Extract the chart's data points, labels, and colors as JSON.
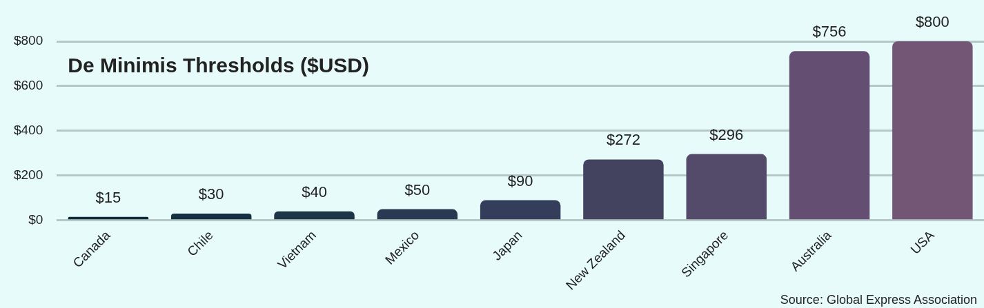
{
  "chart_data": {
    "type": "bar",
    "title": "De Minimis Thresholds ($USD)",
    "categories": [
      "Canada",
      "Chile",
      "Vietnam",
      "Mexico",
      "Japan",
      "New Zealand",
      "Singapore",
      "Australia",
      "USA"
    ],
    "values": [
      15,
      30,
      40,
      50,
      90,
      272,
      296,
      756,
      800
    ],
    "colors": [
      "#0c2a3a",
      "#142f40",
      "#1e3448",
      "#283a52",
      "#343d5a",
      "#434360",
      "#544a6a",
      "#644f72",
      "#735676"
    ],
    "ylim": [
      0,
      800
    ],
    "yticks": [
      {
        "value": 0,
        "label": "$0"
      },
      {
        "value": 200,
        "label": "$200"
      },
      {
        "value": 400,
        "label": "$400"
      },
      {
        "value": 600,
        "label": "$600"
      },
      {
        "value": 800,
        "label": "$800"
      }
    ],
    "value_labels": [
      "$15",
      "$30",
      "$40",
      "$50",
      "$90",
      "$272",
      "$296",
      "$756",
      "$800"
    ],
    "grid": "y",
    "legend": false,
    "annotations": [
      "Source: Global Express Association"
    ]
  }
}
